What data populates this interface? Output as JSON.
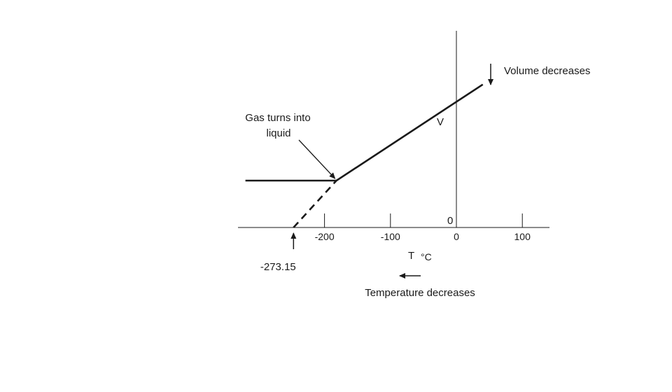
{
  "chart_data": {
    "type": "line",
    "title": "",
    "xlabel": "T",
    "xunit": "°C",
    "ylabel": "V",
    "xlim": [
      -315,
      140
    ],
    "x_ticks": [
      -200,
      -100,
      0,
      100
    ],
    "x_tick_labels": [
      "-200",
      "-100",
      "0",
      "100"
    ],
    "y_origin_label": "0",
    "grid": false,
    "series": [
      {
        "style": "solid",
        "x": [
          -320,
          -182
        ],
        "y": [
          1.0,
          1.0
        ]
      },
      {
        "style": "solid",
        "x": [
          -182,
          40
        ],
        "y": [
          1.0,
          3.05
        ]
      },
      {
        "style": "dashed",
        "x": [
          -247,
          -182
        ],
        "y": [
          0,
          1.0
        ]
      }
    ],
    "annotations": {
      "absolute_zero": {
        "x": -247,
        "label": "-273.15"
      },
      "phase_change": {
        "x": -182,
        "y": 1.0,
        "line1": "Gas turns into",
        "line2": "liquid"
      },
      "temperature_note": "Temperature decreases",
      "volume_note": "Volume decreases"
    }
  }
}
